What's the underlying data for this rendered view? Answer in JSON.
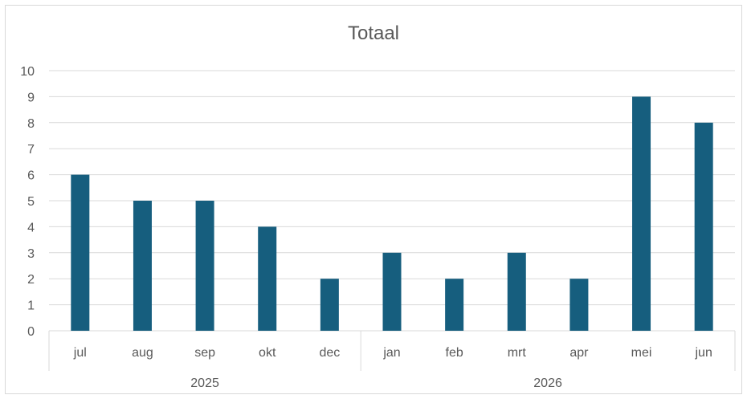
{
  "chart_data": {
    "type": "bar",
    "title": "Totaal",
    "categories": [
      "jul",
      "aug",
      "sep",
      "okt",
      "dec",
      "jan",
      "feb",
      "mrt",
      "apr",
      "mei",
      "jun"
    ],
    "groups": [
      {
        "label": "2025",
        "categories": [
          "jul",
          "aug",
          "sep",
          "okt",
          "dec"
        ]
      },
      {
        "label": "2026",
        "categories": [
          "jan",
          "feb",
          "mrt",
          "apr",
          "mei",
          "jun"
        ]
      }
    ],
    "values": [
      6,
      5,
      5,
      4,
      2,
      3,
      2,
      3,
      2,
      9,
      8
    ],
    "ylim": [
      0,
      10
    ],
    "yticks": [
      0,
      1,
      2,
      3,
      4,
      5,
      6,
      7,
      8,
      9,
      10
    ],
    "grid": true,
    "legend": "none",
    "bar_color": "#165e7e",
    "grid_color": "#d9d9d9",
    "text_color": "#595959"
  }
}
